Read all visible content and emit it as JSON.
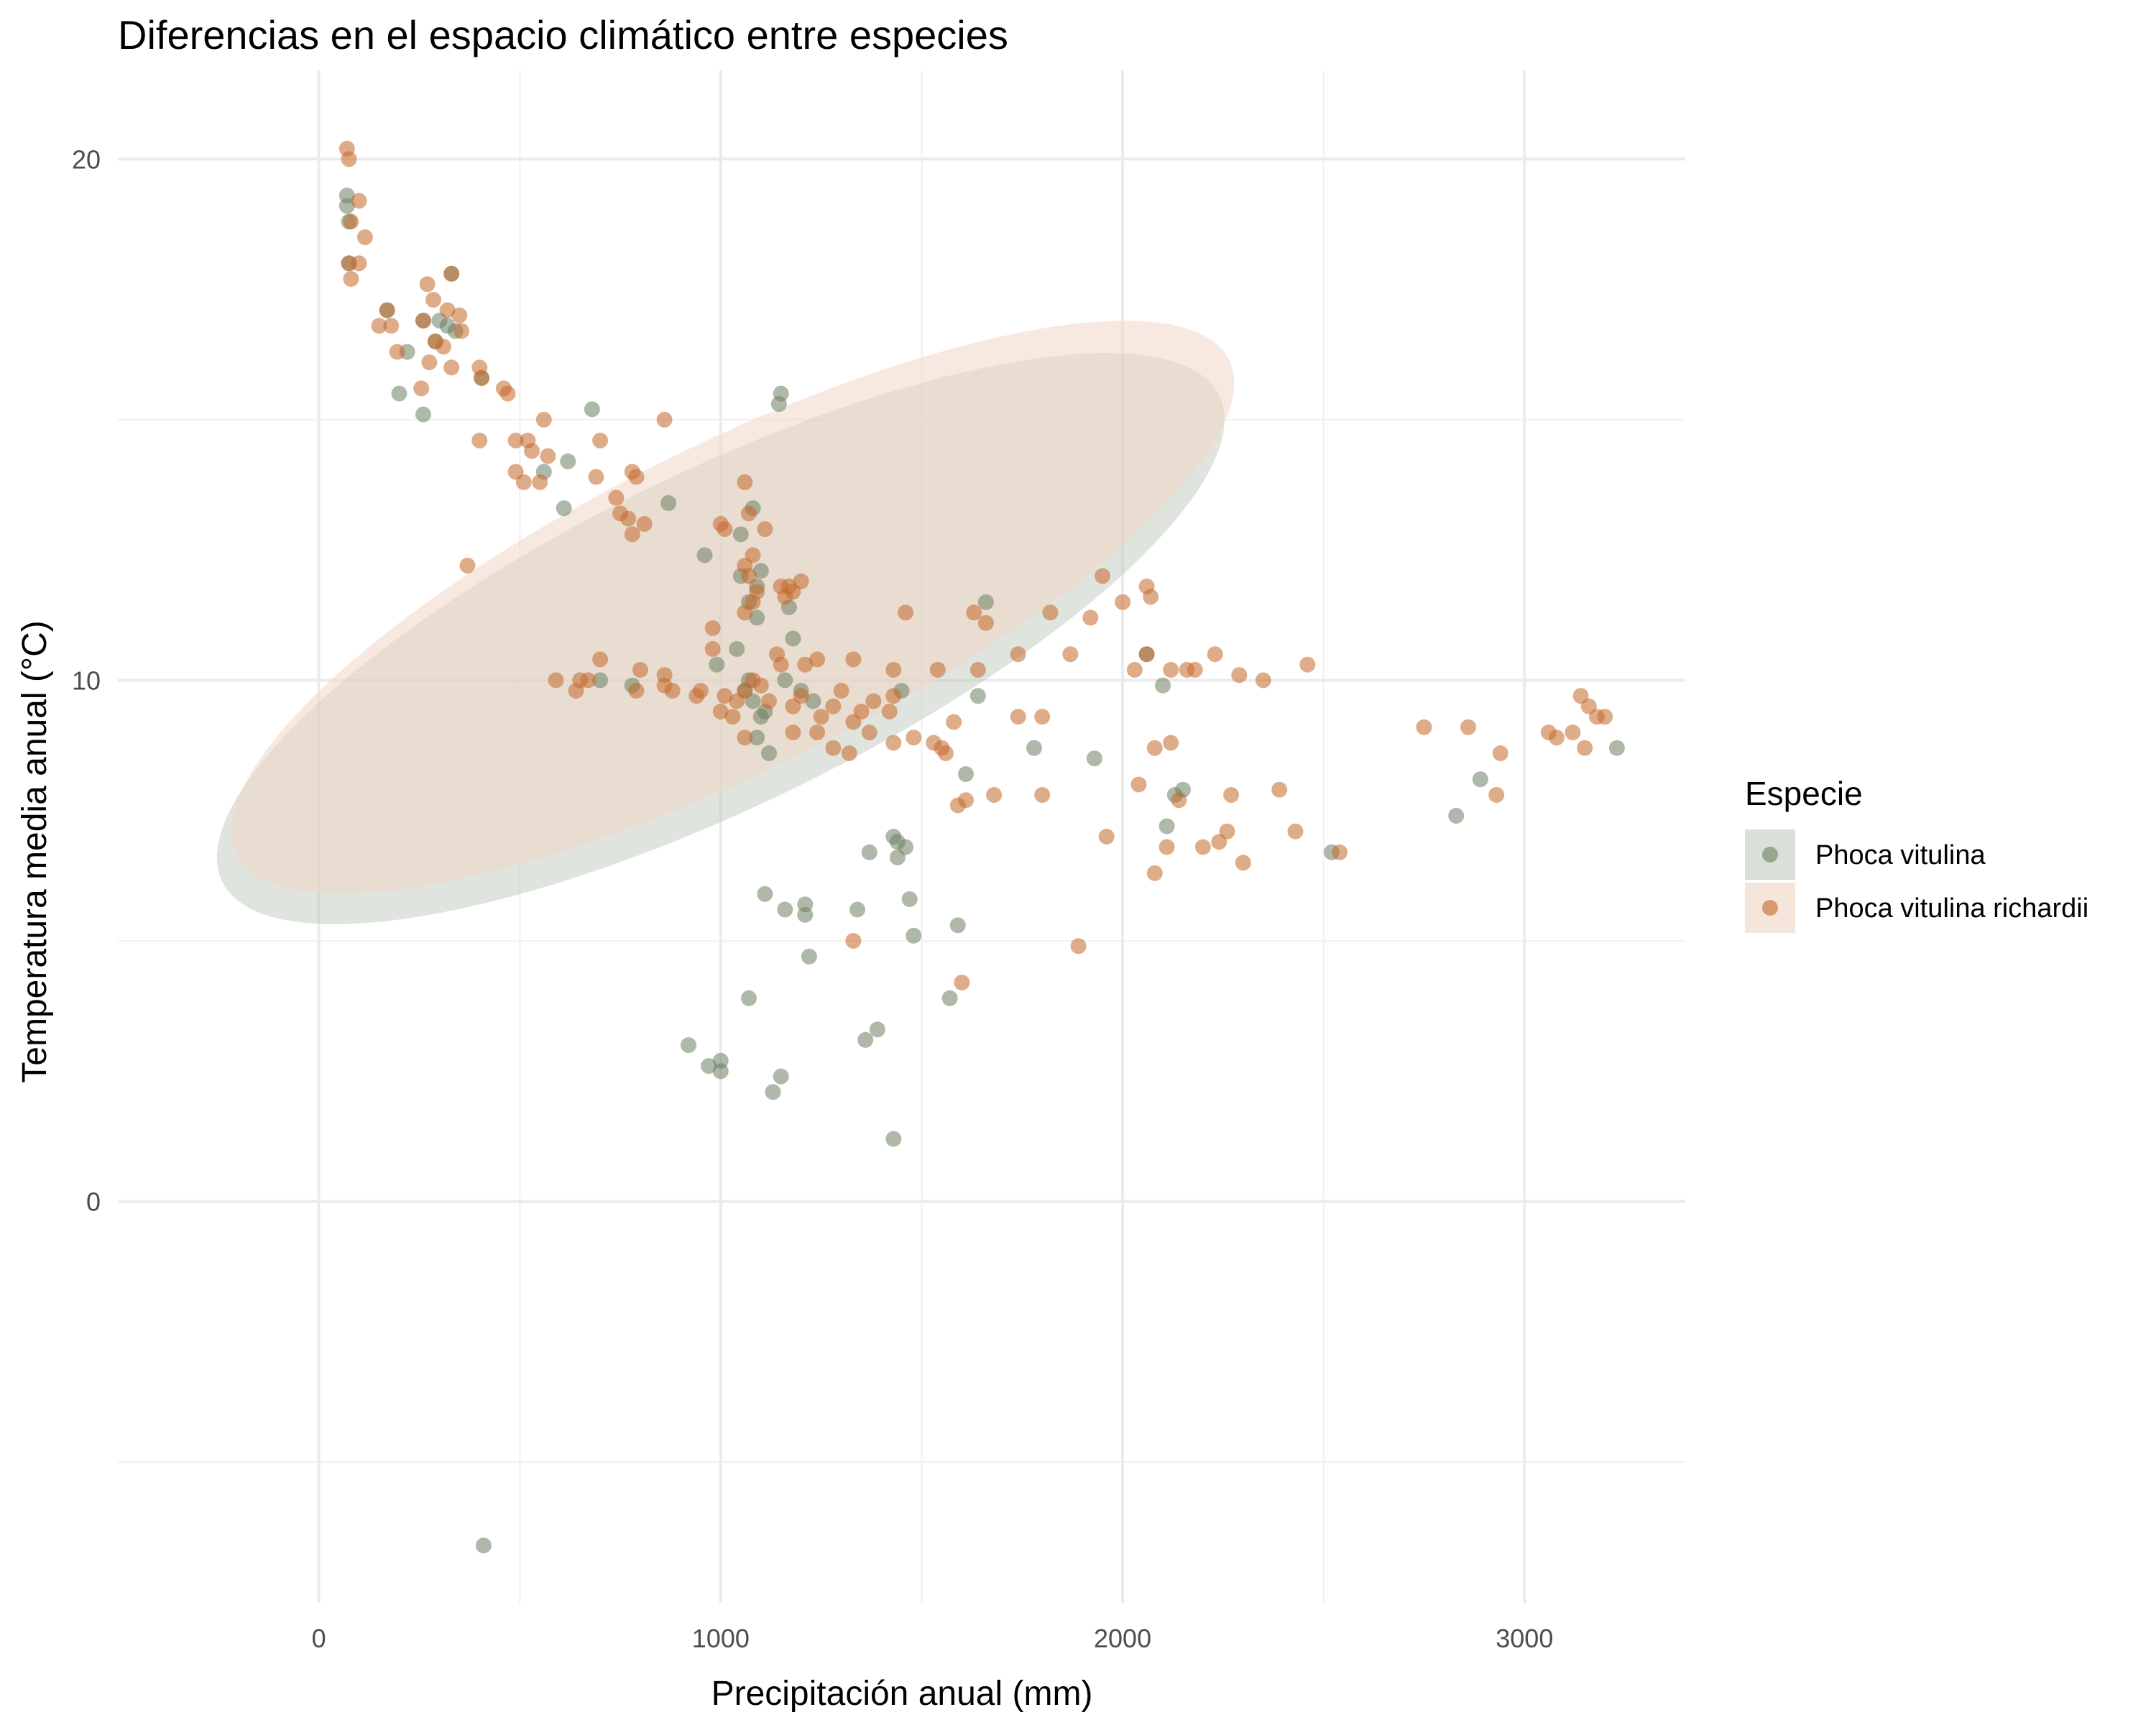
{
  "chart_data": {
    "type": "scatter",
    "title": "Diferencias en el espacio climático entre especies",
    "xlabel": "Precipitación anual (mm)",
    "ylabel": "Temperatura media anual (°C)",
    "xlim": [
      -500,
      3400
    ],
    "ylim": [
      -7.7,
      21.7
    ],
    "x_ticks": [
      0,
      1000,
      2000,
      3000
    ],
    "y_ticks": [
      0,
      10,
      20
    ],
    "x_minor": [
      500,
      1500,
      2500
    ],
    "y_minor": [
      -5,
      5,
      15
    ],
    "grid": true,
    "legend": {
      "title": "Especie",
      "position": "right"
    },
    "ellipse_level": 0.95,
    "series": [
      {
        "name": "Phoca vitulina",
        "color": "#6b7f62",
        "fill": "#b8c6b6",
        "points": [
          [
            70,
            19.3
          ],
          [
            70,
            19.1
          ],
          [
            75,
            18.8
          ],
          [
            75,
            18.0
          ],
          [
            260,
            16.9
          ],
          [
            300,
            16.9
          ],
          [
            220,
            16.3
          ],
          [
            200,
            15.5
          ],
          [
            260,
            15.1
          ],
          [
            330,
            17.8
          ],
          [
            340,
            16.7
          ],
          [
            405,
            15.8
          ],
          [
            680,
            15.2
          ],
          [
            1150,
            15.5
          ],
          [
            1145,
            15.3
          ],
          [
            870,
            13.4
          ],
          [
            610,
            13.3
          ],
          [
            1080,
            13.3
          ],
          [
            1050,
            12.8
          ],
          [
            960,
            12.4
          ],
          [
            1100,
            12.1
          ],
          [
            1090,
            11.8
          ],
          [
            1050,
            12.0
          ],
          [
            1070,
            11.5
          ],
          [
            1090,
            11.2
          ],
          [
            1170,
            11.4
          ],
          [
            1180,
            10.8
          ],
          [
            1040,
            10.6
          ],
          [
            990,
            10.3
          ],
          [
            1660,
            11.5
          ],
          [
            1070,
            10.0
          ],
          [
            1060,
            9.8
          ],
          [
            1080,
            9.6
          ],
          [
            1100,
            9.3
          ],
          [
            1110,
            9.4
          ],
          [
            1090,
            8.9
          ],
          [
            1120,
            8.6
          ],
          [
            1160,
            10.0
          ],
          [
            1200,
            9.8
          ],
          [
            1230,
            9.6
          ],
          [
            1450,
            9.8
          ],
          [
            1640,
            9.7
          ],
          [
            1930,
            8.5
          ],
          [
            2100,
            9.9
          ],
          [
            1780,
            8.7
          ],
          [
            1610,
            8.2
          ],
          [
            2110,
            7.2
          ],
          [
            2150,
            7.9
          ],
          [
            2130,
            7.8
          ],
          [
            1370,
            6.7
          ],
          [
            1430,
            7.0
          ],
          [
            1440,
            6.9
          ],
          [
            1460,
            6.8
          ],
          [
            1440,
            6.6
          ],
          [
            1110,
            5.9
          ],
          [
            1160,
            5.6
          ],
          [
            1210,
            5.7
          ],
          [
            1210,
            5.5
          ],
          [
            1340,
            5.6
          ],
          [
            1470,
            5.8
          ],
          [
            1480,
            5.1
          ],
          [
            1590,
            5.3
          ],
          [
            1220,
            4.7
          ],
          [
            1070,
            3.9
          ],
          [
            1570,
            3.9
          ],
          [
            1390,
            3.3
          ],
          [
            1360,
            3.1
          ],
          [
            920,
            3.0
          ],
          [
            970,
            2.6
          ],
          [
            1000,
            2.5
          ],
          [
            1000,
            2.7
          ],
          [
            1150,
            2.4
          ],
          [
            1130,
            2.1
          ],
          [
            1430,
            1.2
          ],
          [
            410,
            -6.6
          ],
          [
            2520,
            6.7
          ],
          [
            2830,
            7.4
          ],
          [
            2890,
            8.1
          ],
          [
            3230,
            8.7
          ],
          [
            2060,
            10.5
          ],
          [
            700,
            10.0
          ],
          [
            780,
            9.9
          ],
          [
            560,
            14.0
          ],
          [
            620,
            14.2
          ],
          [
            320,
            16.8
          ],
          [
            170,
            17.1
          ],
          [
            290,
            16.5
          ]
        ],
        "ellipse": {
          "cx": 1000,
          "cy": 10.8,
          "rx": 1380,
          "ry": 3.2,
          "angle_deg": -26
        }
      },
      {
        "name": "Phoca vitulina richardii",
        "color": "#c4672a",
        "fill": "#f1d7c7",
        "points": [
          [
            70,
            20.2
          ],
          [
            75,
            20.0
          ],
          [
            100,
            19.2
          ],
          [
            80,
            18.8
          ],
          [
            115,
            18.5
          ],
          [
            75,
            18.0
          ],
          [
            100,
            18.0
          ],
          [
            80,
            17.7
          ],
          [
            270,
            17.6
          ],
          [
            330,
            17.8
          ],
          [
            285,
            17.3
          ],
          [
            320,
            17.1
          ],
          [
            350,
            17.0
          ],
          [
            170,
            17.1
          ],
          [
            260,
            16.9
          ],
          [
            150,
            16.8
          ],
          [
            180,
            16.8
          ],
          [
            355,
            16.7
          ],
          [
            290,
            16.5
          ],
          [
            310,
            16.4
          ],
          [
            195,
            16.3
          ],
          [
            275,
            16.1
          ],
          [
            330,
            16.0
          ],
          [
            400,
            16.0
          ],
          [
            405,
            15.8
          ],
          [
            255,
            15.6
          ],
          [
            470,
            15.5
          ],
          [
            460,
            15.6
          ],
          [
            560,
            15.0
          ],
          [
            860,
            15.0
          ],
          [
            490,
            14.6
          ],
          [
            520,
            14.6
          ],
          [
            530,
            14.4
          ],
          [
            570,
            14.3
          ],
          [
            700,
            14.6
          ],
          [
            400,
            14.6
          ],
          [
            490,
            14.0
          ],
          [
            510,
            13.8
          ],
          [
            550,
            13.8
          ],
          [
            690,
            13.9
          ],
          [
            780,
            14.0
          ],
          [
            790,
            13.9
          ],
          [
            740,
            13.5
          ],
          [
            750,
            13.2
          ],
          [
            770,
            13.1
          ],
          [
            810,
            13.0
          ],
          [
            780,
            12.8
          ],
          [
            1000,
            13.0
          ],
          [
            1010,
            12.9
          ],
          [
            1070,
            13.2
          ],
          [
            1060,
            13.8
          ],
          [
            1110,
            12.9
          ],
          [
            1080,
            12.4
          ],
          [
            370,
            12.2
          ],
          [
            1060,
            12.2
          ],
          [
            1070,
            12.0
          ],
          [
            1090,
            11.7
          ],
          [
            1150,
            11.8
          ],
          [
            1170,
            11.8
          ],
          [
            1200,
            11.9
          ],
          [
            1180,
            11.7
          ],
          [
            1160,
            11.6
          ],
          [
            1080,
            11.5
          ],
          [
            1060,
            11.3
          ],
          [
            1460,
            11.3
          ],
          [
            1630,
            11.3
          ],
          [
            1660,
            11.1
          ],
          [
            1820,
            11.3
          ],
          [
            1920,
            11.2
          ],
          [
            2000,
            11.5
          ],
          [
            1950,
            12.0
          ],
          [
            2060,
            11.8
          ],
          [
            2070,
            11.6
          ],
          [
            980,
            11.0
          ],
          [
            980,
            10.6
          ],
          [
            1140,
            10.5
          ],
          [
            1150,
            10.3
          ],
          [
            1240,
            10.4
          ],
          [
            1210,
            10.3
          ],
          [
            1330,
            10.4
          ],
          [
            1430,
            10.2
          ],
          [
            1540,
            10.2
          ],
          [
            1640,
            10.2
          ],
          [
            1740,
            10.5
          ],
          [
            1870,
            10.5
          ],
          [
            2030,
            10.2
          ],
          [
            2060,
            10.5
          ],
          [
            2120,
            10.2
          ],
          [
            2160,
            10.2
          ],
          [
            2180,
            10.2
          ],
          [
            2230,
            10.5
          ],
          [
            2290,
            10.1
          ],
          [
            2350,
            10.0
          ],
          [
            2460,
            10.3
          ],
          [
            590,
            10.0
          ],
          [
            650,
            10.0
          ],
          [
            670,
            10.0
          ],
          [
            700,
            10.4
          ],
          [
            640,
            9.8
          ],
          [
            790,
            9.8
          ],
          [
            800,
            10.2
          ],
          [
            860,
            9.9
          ],
          [
            880,
            9.8
          ],
          [
            860,
            10.1
          ],
          [
            940,
            9.7
          ],
          [
            950,
            9.8
          ],
          [
            1010,
            9.7
          ],
          [
            1000,
            9.4
          ],
          [
            1030,
            9.3
          ],
          [
            1040,
            9.6
          ],
          [
            1060,
            9.8
          ],
          [
            1080,
            10.0
          ],
          [
            1100,
            9.9
          ],
          [
            1120,
            9.6
          ],
          [
            1180,
            9.5
          ],
          [
            1200,
            9.7
          ],
          [
            1280,
            9.5
          ],
          [
            1300,
            9.8
          ],
          [
            1350,
            9.4
          ],
          [
            1380,
            9.6
          ],
          [
            1420,
            9.4
          ],
          [
            1430,
            9.7
          ],
          [
            1250,
            9.3
          ],
          [
            1330,
            9.2
          ],
          [
            1370,
            9.0
          ],
          [
            1430,
            8.8
          ],
          [
            1480,
            8.9
          ],
          [
            1530,
            8.8
          ],
          [
            1560,
            8.6
          ],
          [
            1580,
            9.2
          ],
          [
            1740,
            9.3
          ],
          [
            1800,
            9.3
          ],
          [
            1320,
            8.6
          ],
          [
            1280,
            8.7
          ],
          [
            1240,
            9.0
          ],
          [
            1180,
            9.0
          ],
          [
            1060,
            8.9
          ],
          [
            1550,
            8.7
          ],
          [
            1610,
            7.7
          ],
          [
            1590,
            7.6
          ],
          [
            1680,
            7.8
          ],
          [
            1800,
            7.8
          ],
          [
            2040,
            8.0
          ],
          [
            2080,
            8.7
          ],
          [
            2120,
            8.8
          ],
          [
            2140,
            7.7
          ],
          [
            2270,
            7.8
          ],
          [
            2390,
            7.9
          ],
          [
            2260,
            7.1
          ],
          [
            2430,
            7.1
          ],
          [
            1960,
            7.0
          ],
          [
            2110,
            6.8
          ],
          [
            2200,
            6.8
          ],
          [
            2240,
            6.9
          ],
          [
            2300,
            6.5
          ],
          [
            2080,
            6.3
          ],
          [
            2540,
            6.7
          ],
          [
            1890,
            4.9
          ],
          [
            1600,
            4.2
          ],
          [
            1330,
            5.0
          ],
          [
            2750,
            9.1
          ],
          [
            2860,
            9.1
          ],
          [
            2940,
            8.6
          ],
          [
            2930,
            7.8
          ],
          [
            3060,
            9.0
          ],
          [
            3080,
            8.9
          ],
          [
            3120,
            9.0
          ],
          [
            3140,
            9.7
          ],
          [
            3160,
            9.5
          ],
          [
            3180,
            9.3
          ],
          [
            3200,
            9.3
          ],
          [
            3150,
            8.7
          ]
        ],
        "ellipse": {
          "cx": 1030,
          "cy": 11.4,
          "rx": 1380,
          "ry": 3.1,
          "angle_deg": -26.5
        }
      }
    ]
  }
}
